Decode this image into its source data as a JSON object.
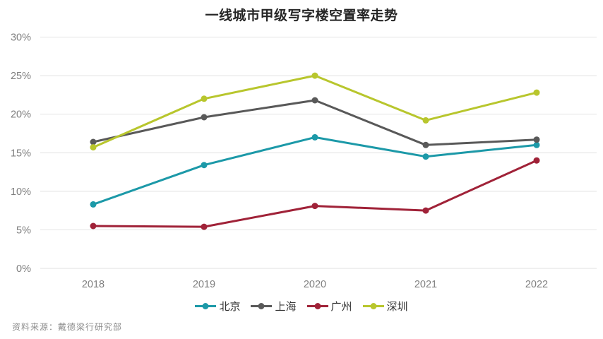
{
  "title": "一线城市甲级写字楼空置率走势",
  "source": "资料来源：戴德梁行研究部",
  "colors": {
    "title_text": "#262626",
    "axis_label": "#7f7f7f",
    "gridline": "#e2e2e2",
    "legend_text": "#333333",
    "source_text": "#8c8c8c",
    "background": "#ffffff"
  },
  "chart_data": {
    "type": "line",
    "title": "一线城市甲级写字楼空置率走势",
    "categories": [
      "2018",
      "2019",
      "2020",
      "2021",
      "2022"
    ],
    "series": [
      {
        "name": "北京",
        "color": "#1c99a8",
        "values": [
          8.3,
          13.4,
          17.0,
          14.5,
          16.0
        ]
      },
      {
        "name": "上海",
        "color": "#595959",
        "values": [
          16.4,
          19.6,
          21.8,
          16.0,
          16.7
        ]
      },
      {
        "name": "广州",
        "color": "#a02238",
        "values": [
          5.5,
          5.4,
          8.1,
          7.5,
          14.0
        ]
      },
      {
        "name": "深圳",
        "color": "#b8c62d",
        "values": [
          15.7,
          22.0,
          25.0,
          19.2,
          22.8
        ]
      }
    ],
    "xlabel": "",
    "ylabel": "",
    "ylim": [
      0,
      30
    ],
    "y_ticks": [
      "0%",
      "5%",
      "10%",
      "15%",
      "20%",
      "25%",
      "30%"
    ],
    "grid": true,
    "legend_position": "bottom"
  }
}
